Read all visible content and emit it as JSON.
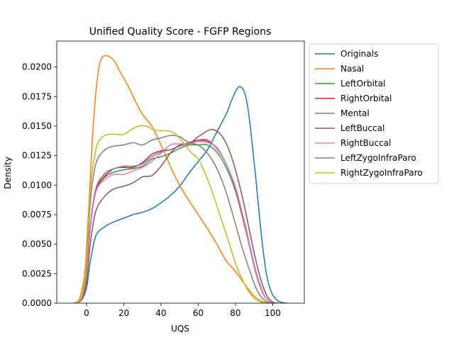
{
  "chart_data": {
    "type": "line",
    "title": "Unified Quality Score - FGFP Regions",
    "xlabel": "UQS",
    "ylabel": "Density",
    "xlim": [
      -16,
      117
    ],
    "ylim": [
      0,
      0.0222
    ],
    "xticks": [
      0,
      20,
      40,
      60,
      80,
      100
    ],
    "yticks": [
      0.0,
      0.0025,
      0.005,
      0.0075,
      0.01,
      0.0125,
      0.015,
      0.0175,
      0.02
    ],
    "ytick_labels": [
      "0.0000",
      "0.0025",
      "0.0050",
      "0.0075",
      "0.0100",
      "0.0125",
      "0.0150",
      "0.0175",
      "0.0200"
    ],
    "grid": false,
    "legend_placement": "outside right, top",
    "series": [
      {
        "name": "Originals",
        "color": "#1f77b4",
        "points": [
          [
            -7,
            0
          ],
          [
            -3,
            0.0002
          ],
          [
            0,
            0.0013
          ],
          [
            2,
            0.0035
          ],
          [
            5,
            0.0057
          ],
          [
            10,
            0.0065
          ],
          [
            15,
            0.0069
          ],
          [
            20,
            0.0072
          ],
          [
            25,
            0.0075
          ],
          [
            30,
            0.0077
          ],
          [
            35,
            0.008
          ],
          [
            40,
            0.0085
          ],
          [
            45,
            0.0091
          ],
          [
            50,
            0.0099
          ],
          [
            55,
            0.011
          ],
          [
            60,
            0.012
          ],
          [
            65,
            0.013
          ],
          [
            70,
            0.0145
          ],
          [
            75,
            0.016
          ],
          [
            78,
            0.0172
          ],
          [
            81,
            0.0182
          ],
          [
            83,
            0.0183
          ],
          [
            85,
            0.0178
          ],
          [
            87,
            0.0162
          ],
          [
            89,
            0.0135
          ],
          [
            91,
            0.0105
          ],
          [
            93,
            0.0072
          ],
          [
            95,
            0.0043
          ],
          [
            97,
            0.0022
          ],
          [
            100,
            0.0007
          ],
          [
            104,
            0.0001
          ],
          [
            108,
            0
          ]
        ]
      },
      {
        "name": "Nasal",
        "color": "#ff7f0e",
        "points": [
          [
            -7,
            0
          ],
          [
            -4,
            0.0003
          ],
          [
            -1,
            0.0025
          ],
          [
            1,
            0.0075
          ],
          [
            3,
            0.0135
          ],
          [
            5,
            0.0178
          ],
          [
            7,
            0.0202
          ],
          [
            9,
            0.0209
          ],
          [
            12,
            0.0209
          ],
          [
            15,
            0.0205
          ],
          [
            18,
            0.0196
          ],
          [
            22,
            0.0185
          ],
          [
            26,
            0.0172
          ],
          [
            30,
            0.016
          ],
          [
            35,
            0.015
          ],
          [
            40,
            0.0134
          ],
          [
            45,
            0.0116
          ],
          [
            50,
            0.01
          ],
          [
            55,
            0.0087
          ],
          [
            60,
            0.0075
          ],
          [
            65,
            0.0063
          ],
          [
            70,
            0.005
          ],
          [
            75,
            0.0036
          ],
          [
            80,
            0.0027
          ],
          [
            85,
            0.0016
          ],
          [
            90,
            0.0006
          ],
          [
            95,
            0.0001
          ],
          [
            100,
            0
          ]
        ]
      },
      {
        "name": "LeftOrbital",
        "color": "#2ca02c",
        "points": [
          [
            -7,
            0
          ],
          [
            -3,
            0.0003
          ],
          [
            0,
            0.0025
          ],
          [
            2,
            0.0065
          ],
          [
            5,
            0.0095
          ],
          [
            10,
            0.0107
          ],
          [
            15,
            0.0111
          ],
          [
            20,
            0.0113
          ],
          [
            25,
            0.0114
          ],
          [
            30,
            0.0116
          ],
          [
            35,
            0.0122
          ],
          [
            40,
            0.0124
          ],
          [
            45,
            0.0127
          ],
          [
            50,
            0.0131
          ],
          [
            55,
            0.0134
          ],
          [
            60,
            0.0134
          ],
          [
            65,
            0.0134
          ],
          [
            70,
            0.0128
          ],
          [
            75,
            0.0115
          ],
          [
            80,
            0.0095
          ],
          [
            85,
            0.0065
          ],
          [
            88,
            0.0045
          ],
          [
            91,
            0.0025
          ],
          [
            94,
            0.0011
          ],
          [
            97,
            0.0003
          ],
          [
            100,
            0
          ]
        ]
      },
      {
        "name": "RightOrbital",
        "color": "#d62728",
        "points": [
          [
            -7,
            0
          ],
          [
            -3,
            0.0003
          ],
          [
            0,
            0.0025
          ],
          [
            2,
            0.0065
          ],
          [
            5,
            0.0096
          ],
          [
            10,
            0.0108
          ],
          [
            15,
            0.0114
          ],
          [
            20,
            0.0115
          ],
          [
            25,
            0.0115
          ],
          [
            30,
            0.0119
          ],
          [
            35,
            0.0126
          ],
          [
            40,
            0.0129
          ],
          [
            45,
            0.013
          ],
          [
            50,
            0.0133
          ],
          [
            55,
            0.0136
          ],
          [
            60,
            0.0138
          ],
          [
            65,
            0.0138
          ],
          [
            70,
            0.0131
          ],
          [
            75,
            0.0118
          ],
          [
            80,
            0.0097
          ],
          [
            85,
            0.0066
          ],
          [
            88,
            0.0046
          ],
          [
            91,
            0.0026
          ],
          [
            94,
            0.0011
          ],
          [
            97,
            0.0003
          ],
          [
            100,
            0
          ]
        ]
      },
      {
        "name": "Mental",
        "color": "#9467bd",
        "points": [
          [
            -7,
            0
          ],
          [
            -3,
            0.0003
          ],
          [
            0,
            0.0025
          ],
          [
            2,
            0.0065
          ],
          [
            5,
            0.0097
          ],
          [
            10,
            0.011
          ],
          [
            15,
            0.0114
          ],
          [
            20,
            0.0116
          ],
          [
            25,
            0.0116
          ],
          [
            30,
            0.0118
          ],
          [
            35,
            0.0124
          ],
          [
            40,
            0.0128
          ],
          [
            45,
            0.013
          ],
          [
            50,
            0.0133
          ],
          [
            55,
            0.0135
          ],
          [
            60,
            0.0137
          ],
          [
            65,
            0.0137
          ],
          [
            70,
            0.0131
          ],
          [
            75,
            0.0118
          ],
          [
            80,
            0.0098
          ],
          [
            85,
            0.0068
          ],
          [
            88,
            0.0047
          ],
          [
            91,
            0.0027
          ],
          [
            94,
            0.0012
          ],
          [
            97,
            0.0003
          ],
          [
            100,
            0
          ]
        ]
      },
      {
        "name": "LeftBuccal",
        "color": "#8c564b",
        "points": [
          [
            -7,
            0
          ],
          [
            -3,
            0.0002
          ],
          [
            0,
            0.0018
          ],
          [
            2,
            0.005
          ],
          [
            5,
            0.0078
          ],
          [
            10,
            0.0091
          ],
          [
            15,
            0.0097
          ],
          [
            20,
            0.0099
          ],
          [
            25,
            0.0102
          ],
          [
            30,
            0.0107
          ],
          [
            35,
            0.0108
          ],
          [
            40,
            0.0116
          ],
          [
            45,
            0.0127
          ],
          [
            50,
            0.0134
          ],
          [
            55,
            0.0135
          ],
          [
            60,
            0.0141
          ],
          [
            65,
            0.0146
          ],
          [
            68,
            0.0147
          ],
          [
            72,
            0.0143
          ],
          [
            76,
            0.0132
          ],
          [
            80,
            0.0113
          ],
          [
            84,
            0.0088
          ],
          [
            88,
            0.0058
          ],
          [
            91,
            0.0036
          ],
          [
            94,
            0.0018
          ],
          [
            97,
            0.0006
          ],
          [
            100,
            0.0001
          ],
          [
            103,
            0
          ]
        ]
      },
      {
        "name": "RightBuccal",
        "color": "#e377c2",
        "points": [
          [
            -7,
            0
          ],
          [
            -3,
            0.0003
          ],
          [
            0,
            0.0025
          ],
          [
            2,
            0.0063
          ],
          [
            5,
            0.0094
          ],
          [
            10,
            0.0105
          ],
          [
            15,
            0.0109
          ],
          [
            20,
            0.0109
          ],
          [
            25,
            0.0112
          ],
          [
            30,
            0.0115
          ],
          [
            35,
            0.012
          ],
          [
            40,
            0.0127
          ],
          [
            45,
            0.0134
          ],
          [
            50,
            0.0135
          ],
          [
            55,
            0.0135
          ],
          [
            60,
            0.0137
          ],
          [
            65,
            0.0136
          ],
          [
            70,
            0.0132
          ],
          [
            75,
            0.0118
          ],
          [
            80,
            0.0098
          ],
          [
            85,
            0.0067
          ],
          [
            88,
            0.0046
          ],
          [
            91,
            0.0026
          ],
          [
            94,
            0.0011
          ],
          [
            97,
            0.0003
          ],
          [
            100,
            0
          ]
        ]
      },
      {
        "name": "LeftZygoInfraParo",
        "color": "#7f7f7f",
        "points": [
          [
            -7,
            0
          ],
          [
            -3,
            0.0004
          ],
          [
            0,
            0.003
          ],
          [
            2,
            0.0085
          ],
          [
            5,
            0.0118
          ],
          [
            10,
            0.013
          ],
          [
            15,
            0.0133
          ],
          [
            20,
            0.0134
          ],
          [
            25,
            0.0136
          ],
          [
            30,
            0.0134
          ],
          [
            35,
            0.0138
          ],
          [
            40,
            0.014
          ],
          [
            45,
            0.0142
          ],
          [
            50,
            0.0141
          ],
          [
            55,
            0.0136
          ],
          [
            60,
            0.0134
          ],
          [
            65,
            0.0127
          ],
          [
            70,
            0.0114
          ],
          [
            75,
            0.0094
          ],
          [
            80,
            0.0067
          ],
          [
            84,
            0.0045
          ],
          [
            88,
            0.0026
          ],
          [
            91,
            0.0013
          ],
          [
            94,
            0.0005
          ],
          [
            97,
            0.0001
          ],
          [
            100,
            0
          ]
        ]
      },
      {
        "name": "RightZygoInfraParo",
        "color": "#bcbd22",
        "points": [
          [
            -7,
            0
          ],
          [
            -3,
            0.0004
          ],
          [
            0,
            0.0033
          ],
          [
            2,
            0.0095
          ],
          [
            5,
            0.013
          ],
          [
            8,
            0.014
          ],
          [
            12,
            0.0143
          ],
          [
            16,
            0.0143
          ],
          [
            20,
            0.0143
          ],
          [
            24,
            0.0147
          ],
          [
            28,
            0.015
          ],
          [
            32,
            0.015
          ],
          [
            36,
            0.0147
          ],
          [
            40,
            0.0146
          ],
          [
            44,
            0.0146
          ],
          [
            48,
            0.0143
          ],
          [
            52,
            0.0136
          ],
          [
            56,
            0.0128
          ],
          [
            60,
            0.0122
          ],
          [
            64,
            0.0109
          ],
          [
            68,
            0.0092
          ],
          [
            72,
            0.0073
          ],
          [
            76,
            0.0054
          ],
          [
            80,
            0.0034
          ],
          [
            84,
            0.0019
          ],
          [
            88,
            0.0008
          ],
          [
            92,
            0.0002
          ],
          [
            96,
            0
          ]
        ]
      }
    ]
  }
}
